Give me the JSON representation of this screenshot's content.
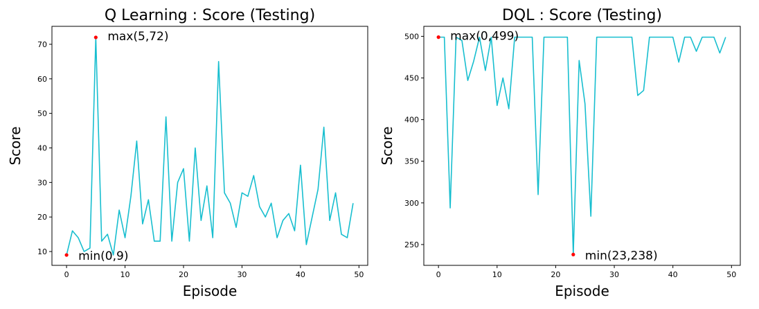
{
  "colors": {
    "series": "#17becf",
    "marker": "#ff0000"
  },
  "chart_data": [
    {
      "type": "line",
      "title": "Q Learning : Score (Testing)",
      "xlabel": "Episode",
      "ylabel": "Score",
      "xlim": [
        -2.5,
        51.5
      ],
      "ylim": [
        6.0,
        75.2
      ],
      "xticks": [
        0,
        10,
        20,
        30,
        40,
        50
      ],
      "yticks": [
        10,
        20,
        30,
        40,
        50,
        60,
        70
      ],
      "grid": false,
      "series": [
        {
          "values": [
            9,
            16,
            14,
            10,
            11,
            72,
            13,
            15,
            9,
            22,
            14,
            26,
            42,
            18,
            25,
            13,
            13,
            49,
            13,
            30,
            34,
            13,
            40,
            19,
            29,
            14,
            65,
            27,
            24,
            17,
            27,
            26,
            32,
            23,
            20,
            24,
            14,
            19,
            21,
            16,
            35,
            12,
            20,
            28,
            46,
            19,
            27,
            15,
            14,
            24
          ]
        }
      ],
      "annotations": [
        {
          "text": "max(5,72)",
          "x": 5,
          "y": 72
        },
        {
          "text": "min(0,9)",
          "x": 0,
          "y": 9
        }
      ]
    },
    {
      "type": "line",
      "title": "DQL : Score (Testing)",
      "xlabel": "Episode",
      "ylabel": "Score",
      "xlim": [
        -2.5,
        51.5
      ],
      "ylim": [
        225,
        512
      ],
      "xticks": [
        0,
        10,
        20,
        30,
        40,
        50
      ],
      "yticks": [
        250,
        300,
        350,
        400,
        450,
        500
      ],
      "grid": false,
      "series": [
        {
          "values": [
            499,
            499,
            294,
            499,
            495,
            447,
            470,
            499,
            459,
            499,
            417,
            450,
            413,
            499,
            499,
            499,
            499,
            310,
            499,
            499,
            499,
            499,
            499,
            238,
            471,
            419,
            284,
            499,
            499,
            499,
            499,
            499,
            499,
            499,
            429,
            435,
            499,
            499,
            499,
            499,
            499,
            469,
            499,
            499,
            482,
            499,
            499,
            499,
            480,
            499
          ]
        }
      ],
      "annotations": [
        {
          "text": "max(0,499)",
          "x": 0,
          "y": 499
        },
        {
          "text": "min(23,238)",
          "x": 23,
          "y": 238
        }
      ]
    }
  ]
}
